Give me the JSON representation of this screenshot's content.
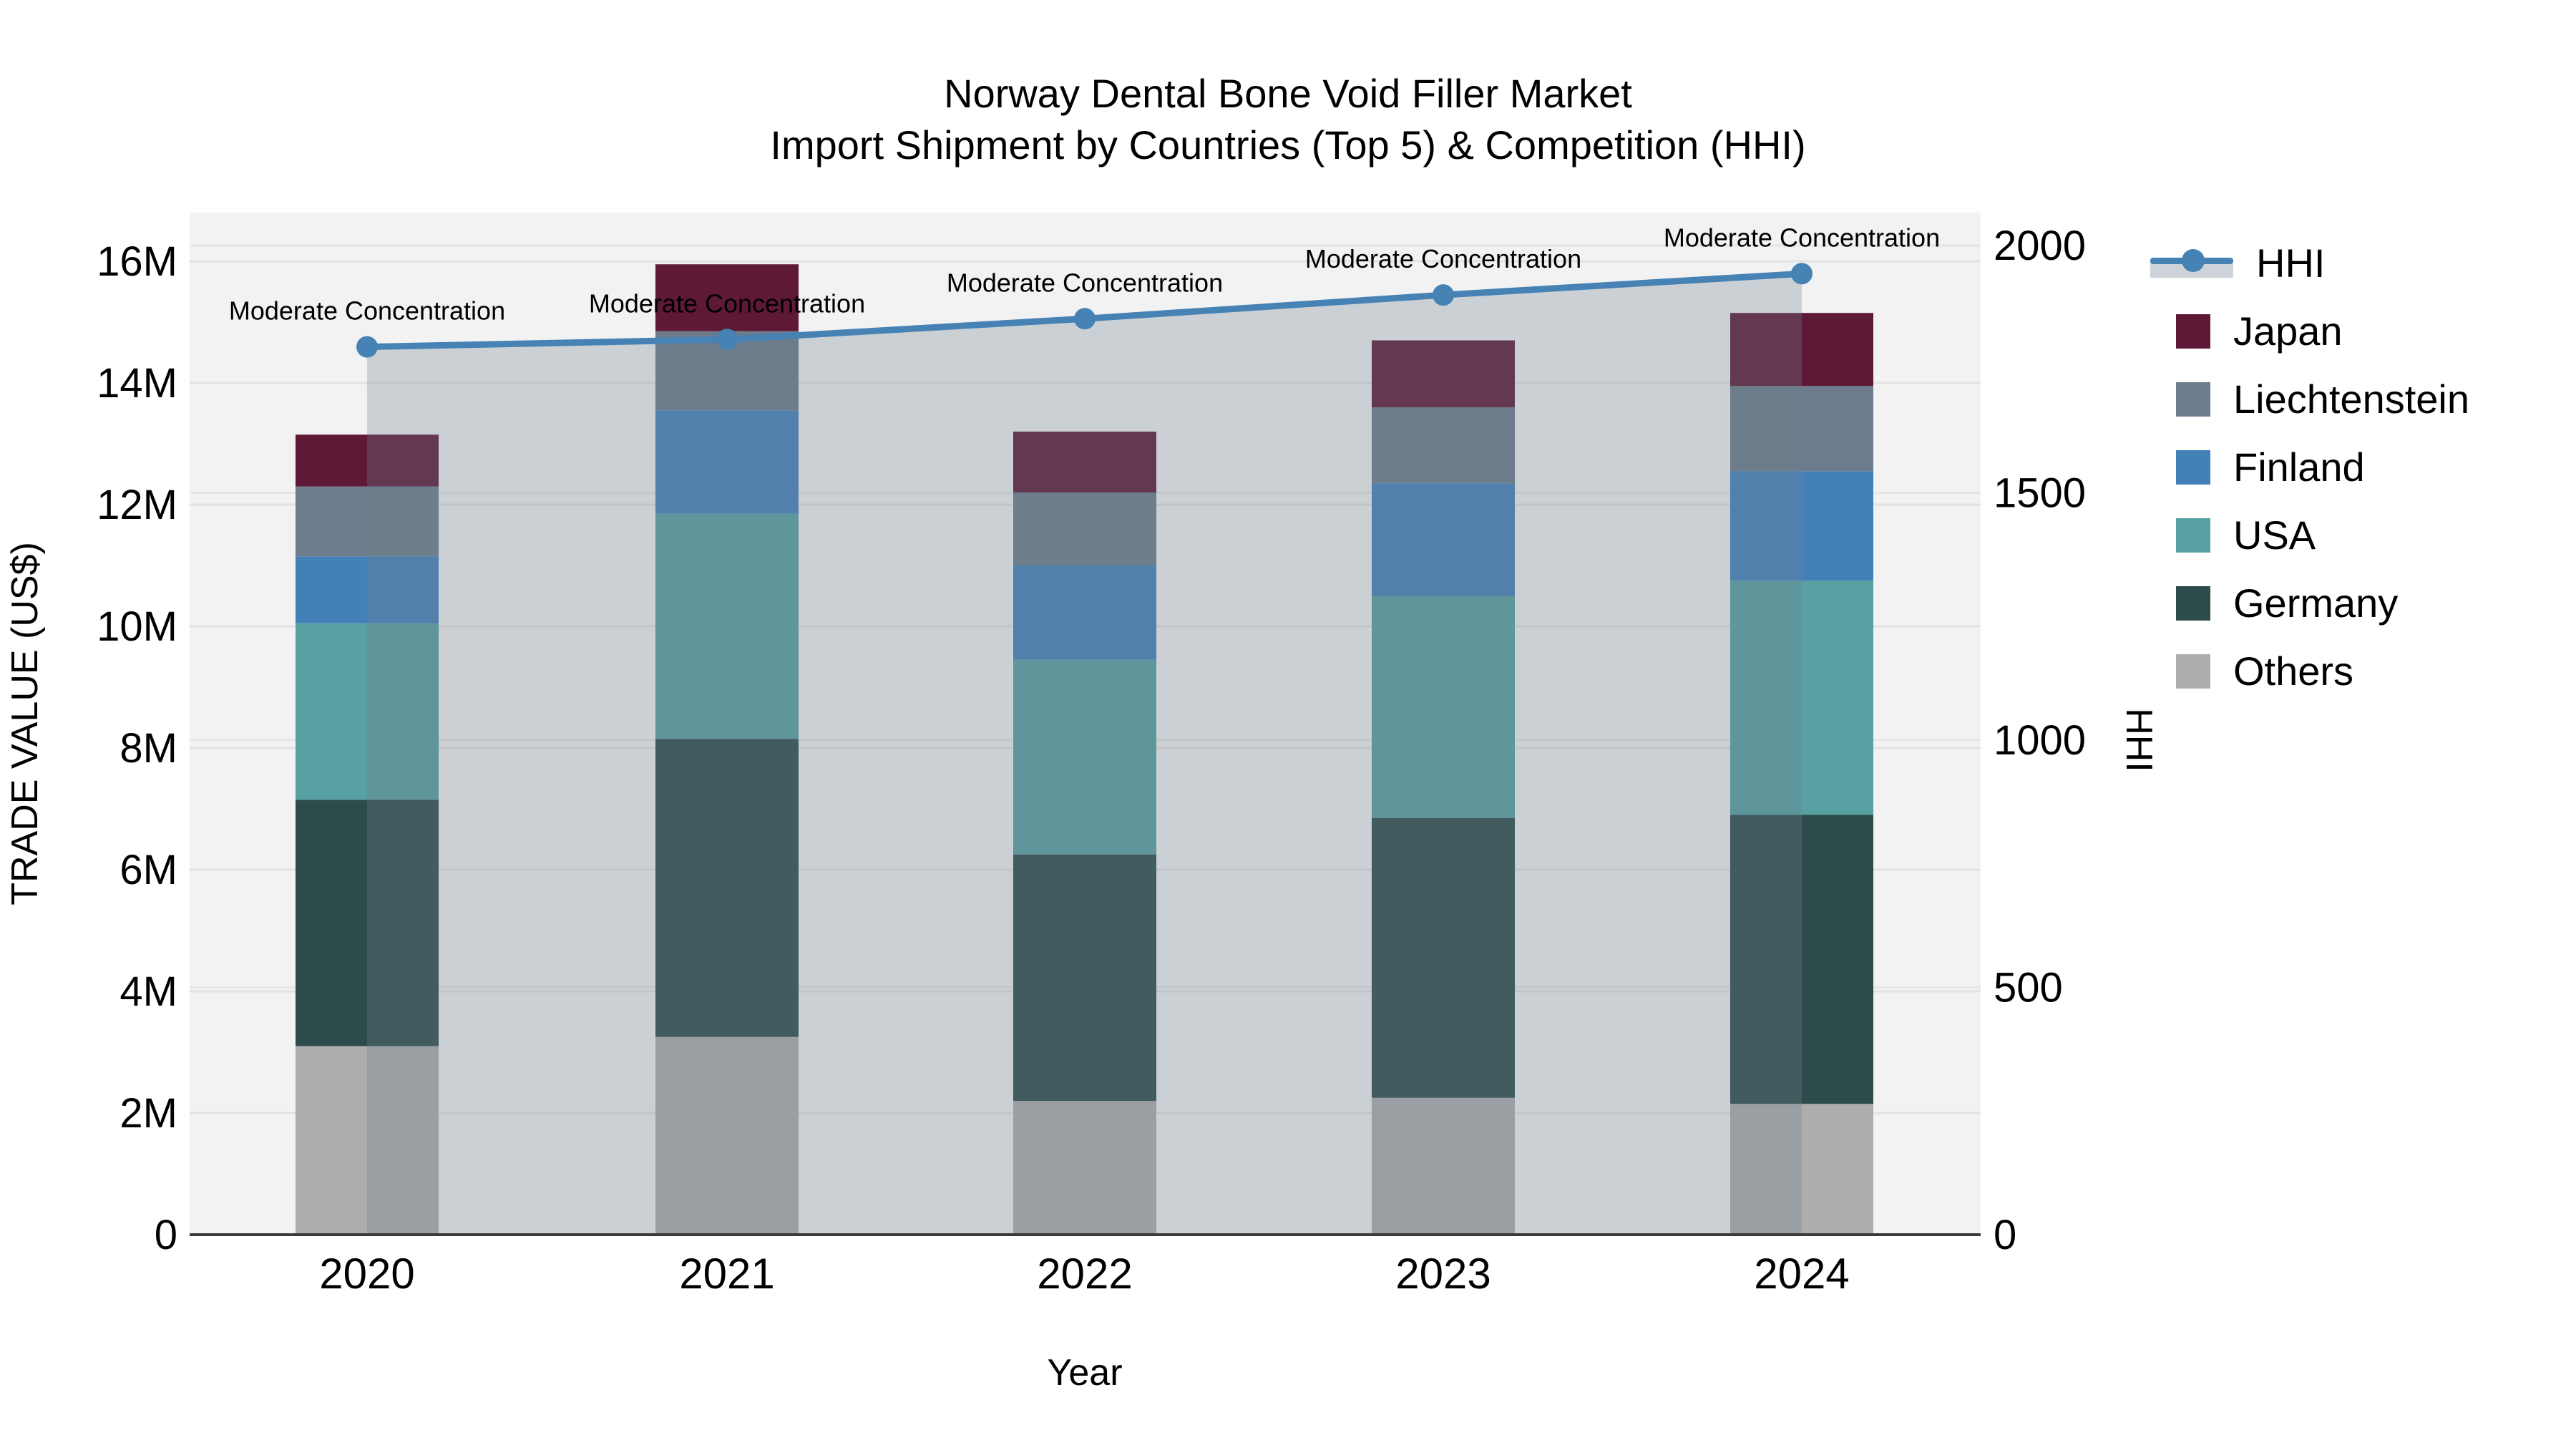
{
  "title": {
    "line1": "Norway Dental Bone Void Filler Market",
    "line2": "Import Shipment by Countries (Top 5) & Competition (HHI)"
  },
  "axes": {
    "left_title": "TRADE VALUE (US$)",
    "right_title": "HHI",
    "x_title": "Year"
  },
  "chart_data": {
    "type": "bar",
    "subtype": "stacked-bars-with-line",
    "categories": [
      "2020",
      "2021",
      "2022",
      "2023",
      "2024"
    ],
    "unit": "US$ millions",
    "series": [
      {
        "name": "Others",
        "color": "#adadad",
        "values": [
          3.1,
          3.25,
          2.2,
          2.25,
          2.15
        ]
      },
      {
        "name": "Germany",
        "color": "#2d4b4b",
        "values": [
          4.05,
          4.9,
          4.05,
          4.6,
          4.75
        ]
      },
      {
        "name": "USA",
        "color": "#58a0a2",
        "values": [
          2.9,
          3.7,
          3.2,
          3.65,
          3.85
        ]
      },
      {
        "name": "Finland",
        "color": "#4380b8",
        "values": [
          1.1,
          1.7,
          1.55,
          1.85,
          1.8
        ]
      },
      {
        "name": "Liechtenstein",
        "color": "#6e7b8c",
        "values": [
          1.15,
          1.3,
          1.2,
          1.25,
          1.4
        ]
      },
      {
        "name": "Japan",
        "color": "#5e1936",
        "values": [
          0.85,
          1.1,
          1.0,
          1.1,
          1.2
        ]
      }
    ],
    "bar_totals": [
      13.15,
      15.95,
      13.2,
      14.7,
      15.15
    ],
    "line_series": {
      "name": "HHI",
      "axis": "right",
      "color": "#4682b4",
      "fill_color": "rgba(112,128,144,0.30)",
      "values": [
        1795,
        1810,
        1852,
        1900,
        1943
      ]
    },
    "annotations": [
      {
        "text": "Moderate Concentration",
        "category": "2020"
      },
      {
        "text": "Moderate Concentration",
        "category": "2021"
      },
      {
        "text": "Moderate Concentration",
        "category": "2022"
      },
      {
        "text": "Moderate Concentration",
        "category": "2023"
      },
      {
        "text": "Moderate Concentration",
        "category": "2024"
      }
    ],
    "y_left": {
      "label": "TRADE VALUE (US$)",
      "ticks": [
        "0",
        "2M",
        "4M",
        "6M",
        "8M",
        "10M",
        "12M",
        "14M",
        "16M"
      ],
      "tick_values": [
        0,
        2,
        4,
        6,
        8,
        10,
        12,
        14,
        16
      ],
      "range": [
        0,
        16.8
      ]
    },
    "y_right": {
      "label": "HHI",
      "ticks": [
        "0",
        "500",
        "1000",
        "1500",
        "2000"
      ],
      "tick_values": [
        0,
        500,
        1000,
        1500,
        2000
      ],
      "range": [
        0,
        2067
      ]
    },
    "xlabel": "Year",
    "grid": true,
    "plot_background": "#f2f2f2",
    "legend_position": "right"
  },
  "legend": {
    "items": [
      {
        "label": "HHI",
        "type": "line",
        "color": "#4682b4"
      },
      {
        "label": "Japan",
        "type": "square",
        "color": "#5e1936"
      },
      {
        "label": "Liechtenstein",
        "type": "square",
        "color": "#6e7b8c"
      },
      {
        "label": "Finland",
        "type": "square",
        "color": "#4380b8"
      },
      {
        "label": "USA",
        "type": "square",
        "color": "#58a0a2"
      },
      {
        "label": "Germany",
        "type": "square",
        "color": "#2d4b4b"
      },
      {
        "label": "Others",
        "type": "square",
        "color": "#adadad"
      }
    ]
  }
}
